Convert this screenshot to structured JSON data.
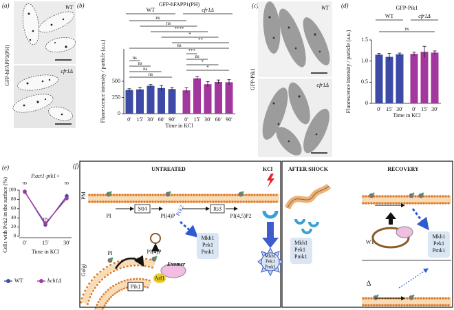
{
  "panel_labels": [
    "(a)",
    "(b)",
    "(c)",
    "(d)",
    "(e)",
    "(f)"
  ],
  "images": {
    "a": {
      "ylabel": "GFP-hFAPP1(PH)",
      "top_label": "WT",
      "bottom_label": "cfr1Δ"
    },
    "c": {
      "ylabel": "GFP-Pik1",
      "top_label": "WT",
      "bottom_label": "cfr1Δ"
    }
  },
  "chart_data": [
    {
      "type": "bar",
      "title": "GFP-hFAPP1(PH)",
      "y_label": "Fluorescence intensity / particle (a.u.)",
      "x_label": "Time in KCl",
      "categories": [
        "0′",
        "15′",
        "30′",
        "60′",
        "90′"
      ],
      "series": [
        {
          "name": "WT",
          "color": "#3d4ba6",
          "values": [
            365,
            375,
            430,
            395,
            380
          ],
          "errors": [
            20,
            35,
            20,
            40,
            25
          ]
        },
        {
          "name": "cfr1Δ",
          "color": "#a2379d",
          "values": [
            360,
            545,
            455,
            490,
            485
          ],
          "errors": [
            40,
            30,
            40,
            30,
            40
          ]
        }
      ],
      "ylim": [
        0,
        1000
      ],
      "yticks": [
        0,
        250,
        500
      ],
      "annotations": [
        "ns",
        "ns",
        "****",
        "*",
        "**",
        "ns",
        "***",
        "ns",
        "*",
        "*",
        "ns",
        "ns",
        "ns",
        "ns"
      ]
    },
    {
      "type": "bar",
      "title": "GFP-Pik1",
      "y_label": "Fluorescence intensity / particle (a.u.)",
      "x_label": "Time in KCl",
      "categories": [
        "0′",
        "15′",
        "30′"
      ],
      "series": [
        {
          "name": "WT",
          "color": "#3d4ba6",
          "values": [
            1.15,
            1.1,
            1.16
          ],
          "errors": [
            0.03,
            0.08,
            0.03
          ]
        },
        {
          "name": "cfr1Δ",
          "color": "#a2379d",
          "values": [
            1.17,
            1.22,
            1.2
          ],
          "errors": [
            0.04,
            0.13,
            0.04
          ]
        }
      ],
      "ylim": [
        0,
        1.5
      ],
      "yticks": [
        0,
        0.5,
        {
          "value": 1,
          "label": "1.0"
        },
        1.5
      ],
      "annotations": [
        "ns"
      ]
    },
    {
      "type": "line",
      "title": "P.act1-pik1+",
      "y_label": "Cells with Pck2 in the surface (%)",
      "x_label": "Time in KCl",
      "categories": [
        "0′",
        "15′",
        "30′"
      ],
      "series": [
        {
          "name": "WT",
          "color": "#3d4ba6",
          "values": [
            97,
            25,
            87
          ],
          "errors": [
            2,
            5,
            6
          ]
        },
        {
          "name": "bch1Δ",
          "color": "#a2379d",
          "values": [
            96,
            28,
            82
          ],
          "errors": [
            2,
            6,
            4
          ]
        }
      ],
      "ylim": [
        0,
        100
      ],
      "yticks": [
        0,
        20,
        40,
        60,
        80,
        100
      ],
      "annotations": [
        "ns",
        "ns",
        "ns"
      ],
      "legend": "bottom"
    }
  ],
  "diagram": {
    "untreated_title": "UNTREATED",
    "kcl_title": "KCl",
    "after_shock_title": "AFTER SHOCK",
    "recovery_title": "RECOVERY",
    "pm": "PM",
    "golgi": "Golgi",
    "pi_pm": "PI",
    "stt4": "Stt4",
    "pi4p_pm": "PI(4)P",
    "pck2": "Pck2",
    "its3": "Its3",
    "pi45p2": "PI(4,5)P2",
    "mapk_untreated": [
      "Mkh1",
      "Pek1",
      "Pmk1"
    ],
    "mapk_kcl": [
      "Mkh1",
      "Pek1",
      "Pmk1"
    ],
    "mapk_shock": [
      "Mkh1",
      "Pek1",
      "Pmk1"
    ],
    "mapk_recovery": [
      "Mkh1",
      "Pek1",
      "Pmk1"
    ],
    "pi_golgi": "PI",
    "pi4p_golgi": "PI(4)P",
    "exomer": "Exomer",
    "arf1": "Arf1",
    "pik1": "Pik1",
    "wt": "WT",
    "delta": "Δ"
  }
}
